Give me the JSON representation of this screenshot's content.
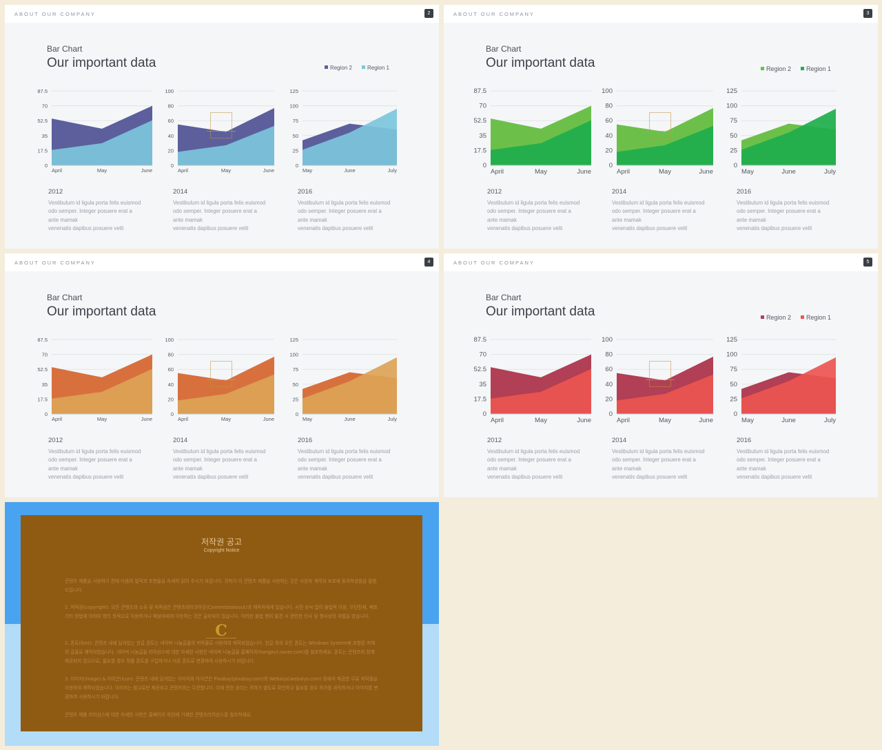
{
  "slides": [
    {
      "header": "ABOUT OUR COMPANY",
      "page": "2",
      "subtitle": "Bar Chart",
      "title": "Our important data",
      "legend": [
        {
          "label": "Region 2",
          "color": "#5c5f9c"
        },
        {
          "label": "Region 1",
          "color": "#7cc6dc"
        }
      ],
      "colors": {
        "region2": "#5c5f9c",
        "region1": "#7cc6dc"
      },
      "year_blocks": [
        {
          "year": "2012",
          "text": "Vestibulum id ligula porta felis euismod\nodo semper. Integer posuere erat a\nante mamak\nvenenatis dapibus posuere velit"
        },
        {
          "year": "2014",
          "text": "Vestibulum id ligula porta felis euismod\nodo semper. Integer posuere erat a\nante mamak\nvenenatis dapibus posuere velit"
        },
        {
          "year": "2016",
          "text": "Vestibulum id ligula porta felis euismod\nodo semper. Integer posuere erat a\nante mamak\nvenenatis dapibus posuere velit"
        }
      ]
    },
    {
      "header": "ABOUT OUR COMPANY",
      "page": "3",
      "subtitle": "Bar Chart",
      "title": "Our important data",
      "legend": [
        {
          "label": "Region 2",
          "color": "#6cc04a"
        },
        {
          "label": "Region 1",
          "color": "#1eae4c"
        }
      ],
      "colors": {
        "region2": "#6cc04a",
        "region1": "#1eae4c"
      },
      "year_blocks": [
        {
          "year": "2012",
          "text": "Vestibulum id ligula porta felis euismod\nodo semper. Integer posuere erat a\nante mamak\nvenenatis dapibus posuere velit"
        },
        {
          "year": "2014",
          "text": "Vestibulum id ligula porta felis euismod\nodo semper. Integer posuere erat a\nante mamak\nvenenatis dapibus posuere velit"
        },
        {
          "year": "2016",
          "text": "Vestibulum id ligula porta felis euismod\nodo semper. Integer posuere erat a\nante mamak\nvenenatis dapibus posuere velit"
        }
      ]
    },
    {
      "header": "ABOUT OUR COMPANY",
      "page": "4",
      "subtitle": "Bar Chart",
      "title": "Our important data",
      "legend": [],
      "colors": {
        "region2": "#d8703e",
        "region1": "#dca356"
      },
      "year_blocks": [
        {
          "year": "2012",
          "text": "Vestibulum id ligula porta felis euismod\nodo semper. Integer posuere erat a\nante mamak\nvenenatis dapibus posuere velit"
        },
        {
          "year": "2014",
          "text": "Vestibulum id ligula porta felis euismod\nodo semper. Integer posuere erat a\nante mamak\nvenenatis dapibus posuere velit"
        },
        {
          "year": "2016",
          "text": "Vestibulum id ligula porta felis euismod\nodo semper. Integer posuere erat a\nante mamak\nvenenatis dapibus posuere velit"
        }
      ]
    },
    {
      "header": "ABOUT OUR COMPANY",
      "page": "5",
      "subtitle": "Bar Chart",
      "title": "Our important data",
      "legend": [
        {
          "label": "Region 2",
          "color": "#b13f55"
        },
        {
          "label": "Region 1",
          "color": "#ec5550"
        }
      ],
      "colors": {
        "region2": "#b13f55",
        "region1": "#ec5550"
      },
      "year_blocks": [
        {
          "year": "2012",
          "text": "Vestibulum id ligula porta felis euismod\nodo semper. Integer posuere erat a\nante mamak\nvenenatis dapibus posuere velit"
        },
        {
          "year": "2014",
          "text": "Vestibulum id ligula porta felis euismod\nodo semper. Integer posuere erat a\nante mamak\nvenenatis dapibus posuere velit"
        },
        {
          "year": "2016",
          "text": "Vestibulum id ligula porta felis euismod\nodo semper. Integer posuere erat a\nante mamak\nvenenatis dapibus posuere velit"
        }
      ]
    }
  ],
  "chart_data": [
    {
      "type": "area",
      "categories": [
        "April",
        "May",
        "June"
      ],
      "yticks": [
        "0",
        "17.5",
        "35",
        "52.5",
        "70",
        "87.5"
      ],
      "ylim": [
        0,
        87.5
      ],
      "series": [
        {
          "name": "Region 2",
          "values": [
            55,
            43,
            70
          ]
        },
        {
          "name": "Region 1",
          "values": [
            18,
            26,
            53
          ]
        }
      ]
    },
    {
      "type": "area",
      "categories": [
        "April",
        "May",
        "June"
      ],
      "yticks": [
        "0",
        "20",
        "40",
        "60",
        "80",
        "100"
      ],
      "ylim": [
        0,
        100
      ],
      "series": [
        {
          "name": "Region 2",
          "values": [
            55,
            45,
            77
          ]
        },
        {
          "name": "Region 1",
          "values": [
            18,
            27,
            53
          ]
        }
      ]
    },
    {
      "type": "area",
      "categories": [
        "May",
        "June",
        "July"
      ],
      "yticks": [
        "0",
        "25",
        "50",
        "75",
        "100",
        "125"
      ],
      "ylim": [
        0,
        125
      ],
      "series": [
        {
          "name": "Region 2",
          "values": [
            42,
            70,
            60
          ]
        },
        {
          "name": "Region 1",
          "values": [
            26,
            55,
            95
          ]
        }
      ]
    }
  ],
  "notice": {
    "title": "저작권 공고",
    "subtitle": "Copyright Notice",
    "paragraphs": [
      "콘텐츠 제품을 사용하기 전에 다음의 법적과 조항들을 자세히 읽어 주시기 바랍니다. 귀하가 이 콘텐츠 제품을 사용하는 것은 사용자 계약과 보호에 동의하셨음을 말씀드립니다.",
      "1. 저작권(copyright): 모든 콘텐츠의 소유 및 저작권은 콘텐츠테이크아웃(Contentstakeout)과 제작자에게 있습니다. 사전 승낙 없이 불법적 이용, 무단전재, 배포 기타 방법에 의하여 영리 목적으로 이용하거나 제삼자에게 이용하는 것은 금지되어 있습니다. 이러한 불법 행위 발견 시 관련한 민사 및 형사상의 처벌을 받습니다.",
      "2. 폰트(font): 콘텐츠 내에 담겨있는 한글 폰트는 네이버 나눔글꼴의 저작물로 사용하여 제작되었습니다. 한글 외의 모든 폰트는 Windows System에 포함된 저체의 글꼴로 제작되었습니다. 네이버 나눔글꼴 라이선스에 대한 자세한 사항은 네이버 나눔글꼴 홈페이지(hangeul.naver.com)를 참조하세요. 폰트는 콘텐츠와 함께 제공되지 않으므로, 필요할 경우 정품 폰트를 구입하거나 다른 폰트로 변경하여 사용하시기 바랍니다.",
      "3. 이미지(image) & 아이콘(icon): 콘텐츠 내에 담겨있는 이미지와 아이콘은 Pixabay(pixabay.com)와 Webalys(webalys.com) 등에서 제공한 무료 저작물을 이용하여 제작되었습니다. 이미지는 참고로만 제공되고 콘텐츠와는 무관합니다. 이에 관한 권리는 귀하가 별도로 확인하고 필요할 경우 허가를 취득하거나 이미지를 변경하여 사용하시기 바랍니다.",
      "콘텐츠 제품 라이선스에 대한 자세한 사항은 홈페이지 하단에 기재한 콘텐츠라이선스를 참조하세요."
    ]
  }
}
